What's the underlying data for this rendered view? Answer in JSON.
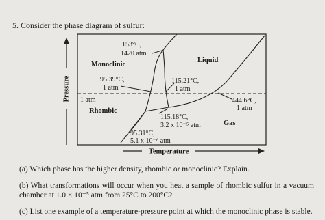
{
  "question": {
    "title": "5. Consider the phase diagram of sulfur:"
  },
  "diagram": {
    "axes": {
      "y": "Pressure",
      "x": "Temperature"
    },
    "regions": [
      "Monoclinic",
      "Liquid",
      "Rhombic",
      "Gas"
    ],
    "reference_line": "1 atm",
    "points": [
      {
        "temperature": "153°C,",
        "pressure": "1420 atm"
      },
      {
        "temperature": "95.39°C,",
        "pressure": "1 atm"
      },
      {
        "temperature": "115.21°C,",
        "pressure": "1 atm"
      },
      {
        "temperature": "444.6°C,",
        "pressure": "1 atm"
      },
      {
        "temperature": "115.18°C,",
        "pressure": "3.2 x 10⁻⁵ atm"
      },
      {
        "temperature": "95.31°C,",
        "pressure": "5.1 x 10⁻⁶ atm"
      }
    ]
  },
  "parts": [
    "(a) Which phase has the higher density, rhombic or monoclinic? Explain.",
    "(b) What transformations will occur when you heat a sample of rhombic sulfur in a vacuum chamber at 1.0 × 10⁻⁵ atm from 25°C to 200°C?",
    "(c) List one example of a temperature-pressure point at which the monoclinic phase is stable."
  ]
}
